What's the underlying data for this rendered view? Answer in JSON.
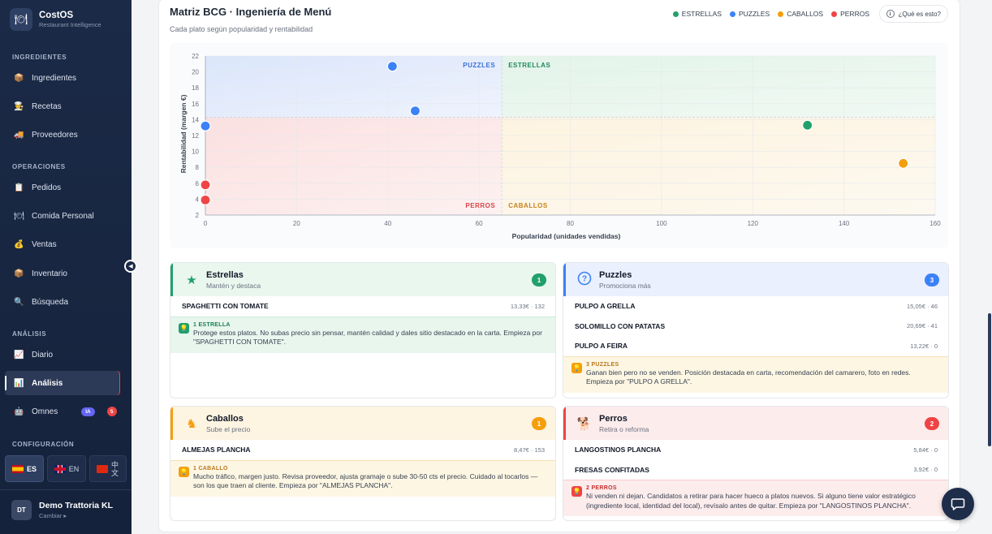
{
  "app": {
    "name": "CostOS",
    "subtitle": "Restaurant Intelligence",
    "logo_icon": "🍽"
  },
  "sidebar": {
    "sections": [
      {
        "title": "INGREDIENTES",
        "items": [
          {
            "label": "Ingredientes",
            "icon": "📦"
          },
          {
            "label": "Recetas",
            "icon": "👨‍🍳"
          },
          {
            "label": "Proveedores",
            "icon": "🚚"
          }
        ]
      },
      {
        "title": "OPERACIONES",
        "items": [
          {
            "label": "Pedidos",
            "icon": "📋"
          },
          {
            "label": "Comida Personal",
            "icon": "🍽"
          },
          {
            "label": "Ventas",
            "icon": "💰"
          },
          {
            "label": "Inventario",
            "icon": "📦"
          },
          {
            "label": "Búsqueda",
            "icon": "🔍"
          }
        ]
      },
      {
        "title": "ANÁLISIS",
        "items": [
          {
            "label": "Diario",
            "icon": "📈"
          },
          {
            "label": "Análisis",
            "icon": "📊",
            "active": true
          },
          {
            "label": "Omnes",
            "icon": "🤖",
            "badge": "IA",
            "count": "5"
          }
        ]
      },
      {
        "title": "CONFIGURACIÓN",
        "items": []
      }
    ],
    "languages": [
      {
        "code": "ES",
        "active": true
      },
      {
        "code": "EN",
        "active": false
      },
      {
        "code": "中文",
        "active": false
      }
    ],
    "user": {
      "initials": "DT",
      "name": "Demo Trattoria KL",
      "sub": "Cambiar ▸"
    }
  },
  "header": {
    "title": "Matriz BCG · Ingeniería de Menú",
    "subtitle": "Cada plato según popularidad y rentabilidad",
    "legend": [
      {
        "label": "ESTRELLAS",
        "color": "#22a06b"
      },
      {
        "label": "PUZZLES",
        "color": "#3b82f6"
      },
      {
        "label": "CABALLOS",
        "color": "#f59e0b"
      },
      {
        "label": "PERROS",
        "color": "#ef4444"
      }
    ],
    "what_button": "¿Qué es esto?"
  },
  "chart_data": {
    "type": "scatter",
    "xlabel": "Popularidad (unidades vendidas)",
    "ylabel": "Rentabilidad (margen €)",
    "xlim": [
      0,
      160
    ],
    "ylim": [
      2,
      22
    ],
    "xticks": [
      0,
      20,
      40,
      60,
      80,
      100,
      120,
      140,
      160
    ],
    "yticks": [
      2,
      4,
      6,
      8,
      10,
      12,
      14,
      16,
      18,
      20,
      22
    ],
    "grid": true,
    "thresholds": {
      "x": 65,
      "y": 14.3
    },
    "quadrant_labels": {
      "top_left": "PUZZLES",
      "top_right": "ESTRELLAS",
      "bottom_left": "PERROS",
      "bottom_right": "CABALLOS"
    },
    "points": [
      {
        "x": 41,
        "y": 20.7,
        "category": "PUZZLES"
      },
      {
        "x": 46,
        "y": 15.1,
        "category": "PUZZLES"
      },
      {
        "x": 0,
        "y": 13.2,
        "category": "PUZZLES"
      },
      {
        "x": 132,
        "y": 13.3,
        "category": "ESTRELLAS"
      },
      {
        "x": 153,
        "y": 8.5,
        "category": "CABALLOS"
      },
      {
        "x": 0,
        "y": 5.8,
        "category": "PERROS"
      },
      {
        "x": 0,
        "y": 3.9,
        "category": "PERROS"
      }
    ]
  },
  "cards": {
    "estrellas": {
      "title": "Estrellas",
      "sub": "Mantén y destaca",
      "count": "1",
      "icon": "star-icon",
      "rows": [
        {
          "name": "SPAGHETTI CON TOMATE",
          "value": "13,33€ · 132"
        }
      ],
      "tip_label": "1 ESTRELLA",
      "tip_text": "Protege estos platos. No subas precio sin pensar, mantén calidad y dales sitio destacado en la carta. Empieza por \"SPAGHETTI CON TOMATE\"."
    },
    "puzzles": {
      "title": "Puzzles",
      "sub": "Promociona más",
      "count": "3",
      "icon": "question-icon",
      "rows": [
        {
          "name": "PULPO A GRELLA",
          "value": "15,05€ · 46"
        },
        {
          "name": "SOLOMILLO CON PATATAS",
          "value": "20,69€ · 41"
        },
        {
          "name": "PULPO A FEIRA",
          "value": "13,22€ · 0"
        }
      ],
      "tip_label": "3 PUZZLES",
      "tip_text": "Ganan bien pero no se venden. Posición destacada en carta, recomendación del camarero, foto en redes. Empieza por \"PULPO A GRELLA\"."
    },
    "caballos": {
      "title": "Caballos",
      "sub": "Sube el precio",
      "count": "1",
      "icon": "horse-icon",
      "rows": [
        {
          "name": "ALMEJAS PLANCHA",
          "value": "8,47€ · 153"
        }
      ],
      "tip_label": "1 CABALLO",
      "tip_text": "Mucho tráfico, margen justo. Revisa proveedor, ajusta gramaje o sube 30-50 cts el precio. Cuidado al tocarlos — son los que traen al cliente. Empieza por \"ALMEJAS PLANCHA\"."
    },
    "perros": {
      "title": "Perros",
      "sub": "Retira o reforma",
      "count": "2",
      "icon": "dog-icon",
      "rows": [
        {
          "name": "LANGOSTINOS PLANCHA",
          "value": "5,84€ · 0"
        },
        {
          "name": "FRESAS CONFITADAS",
          "value": "3,92€ · 0"
        }
      ],
      "tip_label": "2 PERROS",
      "tip_text": "Ni venden ni dejan. Candidatos a retirar para hacer hueco a platos nuevos. Si alguno tiene valor estratégico (ingrediente local, identidad del local), revísalo antes de quitar. Empieza por \"LANGOSTINOS PLANCHA\"."
    }
  }
}
